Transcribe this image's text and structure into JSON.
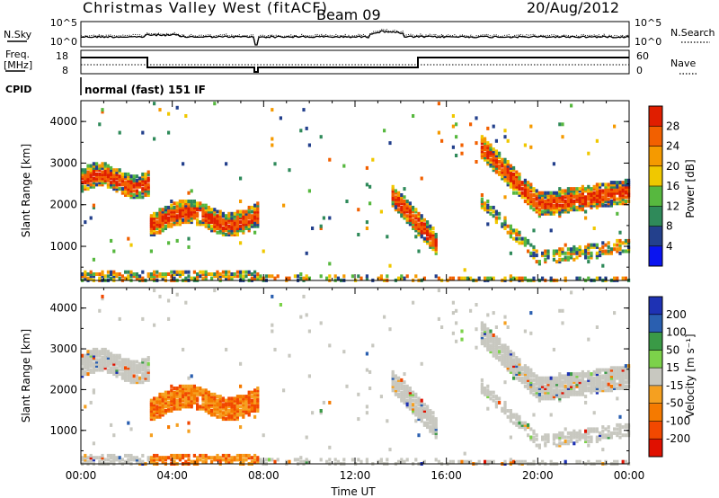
{
  "header": {
    "title": "Christmas Valley West (fitACF)",
    "beam": "Beam 09",
    "date": "20/Aug/2012"
  },
  "nsky_panel": {
    "left_label": "N.Sky",
    "right_label": "N.Search",
    "left_ticks": [
      "10^5",
      "10^0"
    ],
    "right_ticks": [
      "10^5",
      "10^0"
    ]
  },
  "freq_panel": {
    "left_label_line1": "Freq.",
    "left_label_line2": "[MHz]",
    "right_label": "Nave",
    "left_ticks": [
      "18",
      "8"
    ],
    "right_ticks": [
      "60",
      "0"
    ]
  },
  "cpid": {
    "label": "CPID",
    "value": "normal (fast) 151 IF"
  },
  "chart_data": [
    {
      "type": "heatmap",
      "name": "Power",
      "ylabel": "Slant Range [km]",
      "xlabel": "",
      "ylim": [
        180,
        4500
      ],
      "yticks": [
        "1000",
        "2000",
        "3000",
        "4000"
      ],
      "xlim_hours": [
        0,
        24
      ],
      "colorbar": {
        "label": "Power [dB]",
        "ticks": [
          "4",
          "8",
          "12",
          "16",
          "20",
          "24",
          "28"
        ],
        "colors": [
          "#0a14f0",
          "#23408c",
          "#2f8a5a",
          "#57b83f",
          "#f0c800",
          "#f59a00",
          "#f26000",
          "#e01e00"
        ]
      }
    },
    {
      "type": "heatmap",
      "name": "Velocity",
      "ylabel": "Slant Range [km]",
      "xlabel": "Time UT",
      "ylim": [
        180,
        4500
      ],
      "yticks": [
        "1000",
        "2000",
        "3000",
        "4000"
      ],
      "xticks": [
        "00:00",
        "04:00",
        "08:00",
        "12:00",
        "16:00",
        "20:00",
        "00:00"
      ],
      "xlim_hours": [
        0,
        24
      ],
      "colorbar": {
        "label": "Velocity [m s⁻¹]",
        "ticks": [
          "200",
          "100",
          "50",
          "15",
          "-15",
          "-50",
          "-100",
          "-200"
        ],
        "colors": [
          "#1e32b4",
          "#2a5fb0",
          "#3a9a46",
          "#7cd24a",
          "#c8c8c0",
          "#f5a020",
          "#f57a00",
          "#f24800",
          "#e01000"
        ]
      }
    }
  ]
}
